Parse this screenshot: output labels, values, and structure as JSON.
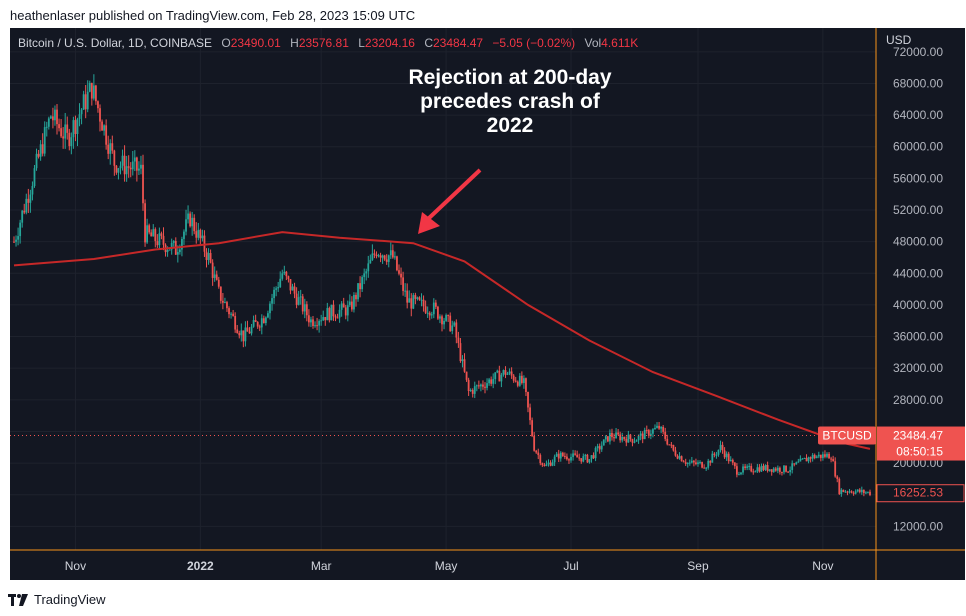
{
  "publisher": "heathenlaser published on TradingView.com, Feb 28, 2023 15:09 UTC",
  "legend": {
    "symbol": "Bitcoin / U.S. Dollar, 1D, COINBASE",
    "o_label": "O",
    "o_value": "23490.01",
    "h_label": "H",
    "h_value": "23576.81",
    "l_label": "L",
    "l_value": "23204.16",
    "c_label": "C",
    "c_value": "23484.47",
    "change": "−5.05 (−0.02%)",
    "vol_label": "Vol",
    "vol_value": "4.611K"
  },
  "annotation_text": "Rejection at 200-day precedes crash of 2022",
  "footer": "TradingView",
  "colors": {
    "up": "#26a69a",
    "down": "#ef5350",
    "ma": "#c62828",
    "background": "#131722",
    "arrow": "#f23645"
  },
  "chart_data": {
    "type": "candlestick",
    "currency": "USD",
    "y_ticks": [
      12000,
      16000,
      20000,
      24000,
      28000,
      32000,
      36000,
      40000,
      44000,
      48000,
      52000,
      56000,
      60000,
      64000,
      68000,
      72000
    ],
    "y_tick_labels": [
      "12000.00",
      "16000.00",
      "20000.00",
      "24000.00",
      "28000.00",
      "32000.00",
      "36000.00",
      "40000.00",
      "44000.00",
      "48000.00",
      "52000.00",
      "56000.00",
      "60000.00",
      "64000.00",
      "68000.00",
      "72000.00"
    ],
    "ylim": [
      8000,
      74000
    ],
    "x_ticks": [
      {
        "label": "Nov",
        "date": "2021-11-01",
        "bold": false
      },
      {
        "label": "2022",
        "date": "2022-01-01",
        "bold": true
      },
      {
        "label": "Mar",
        "date": "2022-03-01",
        "bold": false
      },
      {
        "label": "May",
        "date": "2022-05-01",
        "bold": false
      },
      {
        "label": "Jul",
        "date": "2022-07-01",
        "bold": false
      },
      {
        "label": "Sep",
        "date": "2022-09-01",
        "bold": false
      },
      {
        "label": "Nov",
        "date": "2022-11-01",
        "bold": false
      }
    ],
    "xlim": [
      "2021-10-02",
      "2022-11-24"
    ],
    "price_anchors": [
      [
        "2021-10-02",
        48000
      ],
      [
        "2021-10-10",
        55000
      ],
      [
        "2021-10-20",
        64000
      ],
      [
        "2021-10-28",
        61000
      ],
      [
        "2021-11-09",
        67500
      ],
      [
        "2021-11-20",
        58000
      ],
      [
        "2021-12-03",
        57000
      ],
      [
        "2021-12-05",
        49000
      ],
      [
        "2021-12-20",
        47000
      ],
      [
        "2021-12-27",
        51000
      ],
      [
        "2022-01-05",
        46000
      ],
      [
        "2022-01-10",
        41500
      ],
      [
        "2022-01-22",
        36000
      ],
      [
        "2022-02-01",
        38500
      ],
      [
        "2022-02-10",
        44000
      ],
      [
        "2022-02-24",
        38000
      ],
      [
        "2022-03-05",
        39000
      ],
      [
        "2022-03-15",
        39500
      ],
      [
        "2022-03-28",
        47000
      ],
      [
        "2022-04-05",
        46000
      ],
      [
        "2022-04-12",
        40500
      ],
      [
        "2022-04-25",
        39500
      ],
      [
        "2022-05-05",
        37000
      ],
      [
        "2022-05-12",
        29000
      ],
      [
        "2022-05-30",
        31500
      ],
      [
        "2022-06-08",
        30000
      ],
      [
        "2022-06-13",
        22000
      ],
      [
        "2022-06-18",
        19500
      ],
      [
        "2022-06-25",
        21000
      ],
      [
        "2022-07-10",
        20500
      ],
      [
        "2022-07-20",
        23500
      ],
      [
        "2022-08-01",
        23000
      ],
      [
        "2022-08-13",
        24500
      ],
      [
        "2022-08-20",
        21500
      ],
      [
        "2022-08-27",
        20000
      ],
      [
        "2022-09-05",
        19800
      ],
      [
        "2022-09-12",
        22000
      ],
      [
        "2022-09-20",
        19000
      ],
      [
        "2022-10-01",
        19400
      ],
      [
        "2022-10-15",
        19200
      ],
      [
        "2022-10-26",
        20800
      ],
      [
        "2022-11-05",
        21000
      ],
      [
        "2022-11-09",
        16500
      ],
      [
        "2022-11-14",
        16500
      ],
      [
        "2022-11-24",
        16250
      ]
    ],
    "ma_series": {
      "name": "200-day",
      "points": [
        [
          "2021-10-02",
          45000
        ],
        [
          "2021-11-10",
          45800
        ],
        [
          "2021-12-10",
          47000
        ],
        [
          "2022-01-10",
          47800
        ],
        [
          "2022-02-10",
          49200
        ],
        [
          "2022-03-10",
          48500
        ],
        [
          "2022-04-15",
          47800
        ],
        [
          "2022-05-10",
          45500
        ],
        [
          "2022-06-10",
          40000
        ],
        [
          "2022-07-10",
          35500
        ],
        [
          "2022-08-10",
          31500
        ],
        [
          "2022-09-10",
          28500
        ],
        [
          "2022-10-10",
          25500
        ],
        [
          "2022-11-10",
          22600
        ],
        [
          "2022-11-24",
          21800
        ]
      ]
    },
    "last_price": {
      "symbol": "BTCUSD",
      "value": 23484.47,
      "label": "23484.47",
      "countdown": "08:50:15"
    },
    "low_marker": {
      "value": 16252.53,
      "label": "16252.53"
    }
  }
}
